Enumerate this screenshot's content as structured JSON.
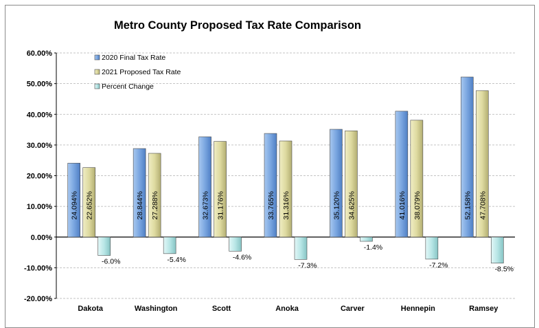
{
  "chart_data": {
    "type": "bar",
    "title": "Metro County Proposed Tax Rate Comparison",
    "categories": [
      "Dakota",
      "Washington",
      "Scott",
      "Anoka",
      "Carver",
      "Hennepin",
      "Ramsey"
    ],
    "series": [
      {
        "name": "2020 Final Tax Rate",
        "values": [
          24.094,
          28.844,
          32.673,
          33.765,
          35.12,
          41.016,
          52.158
        ],
        "labels": [
          "24.094%",
          "28.844%",
          "32.673%",
          "33.765%",
          "35.120%",
          "41.016%",
          "52.158%"
        ],
        "color": "#7aa6e0"
      },
      {
        "name": "2021 Proposed Tax Rate",
        "values": [
          22.652,
          27.288,
          31.176,
          31.316,
          34.625,
          38.079,
          47.708
        ],
        "labels": [
          "22.652%",
          "27.288%",
          "31.176%",
          "31.316%",
          "34.625%",
          "38.079%",
          "47.708%"
        ],
        "color": "#dedaa0"
      },
      {
        "name": "Percent Change",
        "values": [
          -6.0,
          -5.4,
          -4.6,
          -7.3,
          -1.4,
          -7.2,
          -8.5
        ],
        "labels": [
          "-6.0%",
          "-5.4%",
          "-4.6%",
          "-7.3%",
          "-1.4%",
          "-7.2%",
          "-8.5%"
        ],
        "color": "#b8e6e6"
      }
    ],
    "ylim": [
      -20,
      60
    ],
    "yticks": [
      60,
      50,
      40,
      30,
      20,
      10,
      0,
      -10,
      -20
    ],
    "ytick_labels": [
      "60.00%",
      "50.00%",
      "40.00%",
      "30.00%",
      "20.00%",
      "10.00%",
      "0.00%",
      "-10.00%",
      "-20.00%"
    ],
    "grid": true,
    "legend_position": "top-left"
  }
}
